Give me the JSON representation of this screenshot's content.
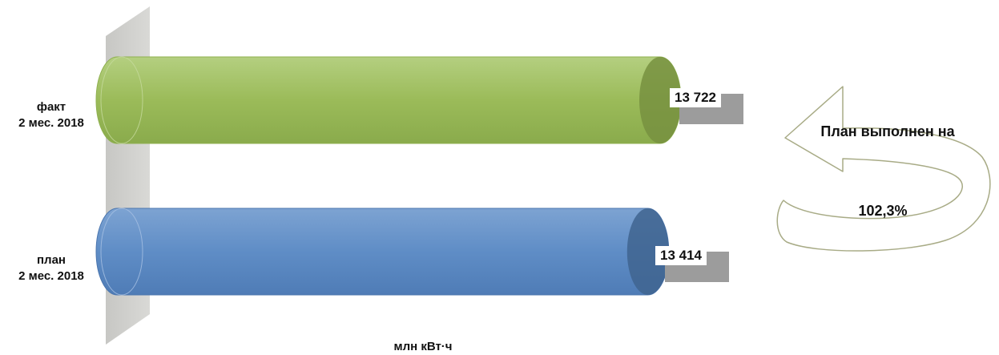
{
  "chart_data": {
    "type": "bar",
    "orientation": "horizontal",
    "style": "3d-cylinder",
    "categories": [
      {
        "line1": "факт",
        "line2": "2 мес. 2018"
      },
      {
        "line1": "план",
        "line2": "2 мес. 2018"
      }
    ],
    "values": [
      13722,
      13414
    ],
    "value_labels": [
      "13 722",
      "13 414"
    ],
    "colors": [
      "#9bbb59",
      "#4f81bd"
    ],
    "unit_label": "млн кВт·ч"
  },
  "callout": {
    "title": "План выполнен на",
    "value": "102,3%"
  }
}
